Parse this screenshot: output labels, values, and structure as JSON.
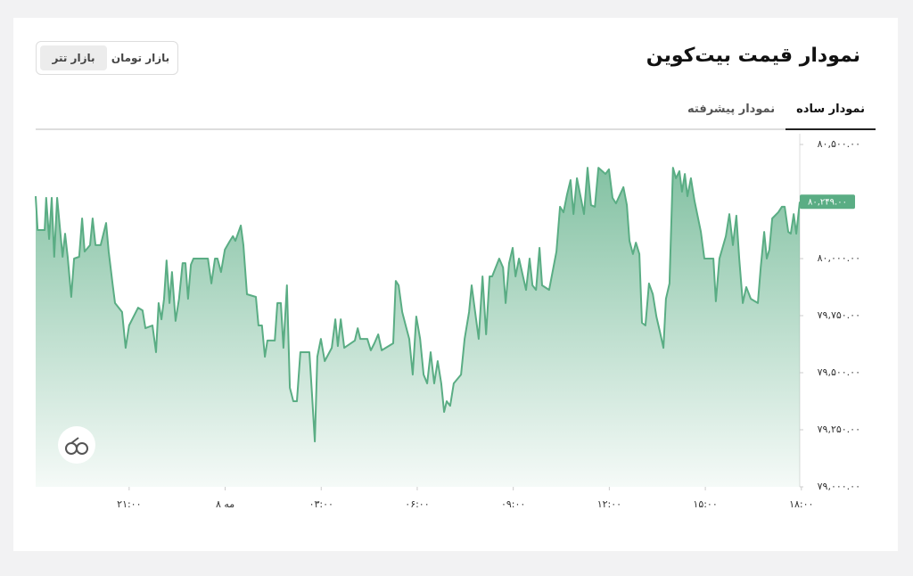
{
  "header": {
    "title": "نمودار قیمت بیت‌کوین",
    "markets": [
      "بازار تومان",
      "بازار تتر"
    ],
    "selected_market": 1
  },
  "tabs": {
    "items": [
      "نمودار ساده",
      "نمودار پیشرفته"
    ],
    "selected": 0
  },
  "chart_data": {
    "type": "area",
    "x": [
      18.08,
      18.14,
      18.36,
      18.41,
      18.5,
      18.58,
      18.66,
      18.75,
      18.92,
      19.0,
      19.08,
      19.19,
      19.28,
      19.44,
      19.53,
      19.61,
      19.78,
      19.86,
      19.95,
      20.11,
      20.28,
      20.36,
      20.48,
      20.56,
      20.78,
      20.89,
      21.0,
      21.28,
      21.42,
      21.51,
      21.73,
      21.84,
      21.92,
      22.01,
      22.09,
      22.17,
      22.26,
      22.34,
      22.45,
      22.56,
      22.67,
      22.76,
      22.84,
      22.93,
      23.01,
      23.46,
      23.57,
      23.68,
      23.76,
      23.87,
      23.99,
      24.15,
      24.24,
      24.32,
      24.49,
      24.57,
      24.68,
      24.96,
      25.04,
      25.15,
      25.24,
      25.32,
      25.55,
      25.63,
      25.74,
      25.82,
      25.93,
      26.02,
      26.13,
      26.24,
      26.35,
      26.63,
      26.71,
      26.8,
      26.88,
      26.99,
      27.11,
      27.33,
      27.44,
      27.52,
      27.61,
      27.72,
      28.05,
      28.14,
      28.22,
      28.44,
      28.55,
      28.66,
      28.78,
      28.89,
      29.25,
      29.33,
      29.42,
      29.53,
      29.64,
      29.75,
      29.86,
      29.97,
      30.09,
      30.2,
      30.31,
      30.42,
      30.53,
      30.64,
      30.75,
      30.84,
      30.92,
      31.03,
      31.14,
      31.37,
      31.48,
      31.62,
      31.7,
      31.81,
      31.92,
      32.04,
      32.15,
      32.26,
      32.34,
      32.56,
      32.68,
      32.76,
      32.87,
      32.98,
      33.07,
      33.18,
      33.4,
      33.51,
      33.6,
      33.71,
      33.82,
      33.9,
      34.12,
      34.35,
      34.46,
      34.57,
      34.68,
      34.79,
      34.88,
      34.99,
      35.1,
      35.21,
      35.32,
      35.43,
      35.55,
      35.66,
      35.88,
      35.99,
      36.1,
      36.21,
      36.44,
      36.55,
      36.63,
      36.74,
      36.83,
      36.94,
      37.02,
      37.13,
      37.24,
      37.36,
      37.47,
      37.58,
      37.69,
      37.77,
      37.88,
      37.99,
      38.08,
      38.19,
      38.27,
      38.36,
      38.44,
      38.55,
      38.66,
      38.86,
      38.97,
      39.25,
      39.33,
      39.44,
      39.64,
      39.75,
      39.86,
      39.97,
      40.06,
      40.17,
      40.28,
      40.42,
      40.64,
      40.73,
      40.84,
      40.92,
      41.0,
      41.09,
      41.28,
      41.39,
      41.48,
      41.59,
      41.67,
      41.76,
      41.84,
      41.95
    ],
    "values": [
      80273,
      80125,
      80125,
      80266,
      80086,
      80266,
      80008,
      80266,
      80008,
      80109,
      80008,
      79832,
      80000,
      80008,
      80176,
      80031,
      80059,
      80176,
      80059,
      80059,
      80156,
      80031,
      79891,
      79805,
      79766,
      79609,
      79707,
      79785,
      79773,
      79695,
      79707,
      79590,
      79805,
      79734,
      79824,
      79992,
      79805,
      79941,
      79727,
      79824,
      79980,
      79980,
      79824,
      79973,
      80000,
      80000,
      79891,
      80000,
      80000,
      79941,
      80039,
      80078,
      80098,
      80078,
      80145,
      80059,
      79844,
      79832,
      79707,
      79707,
      79570,
      79641,
      79641,
      79805,
      79805,
      79609,
      79883,
      79434,
      79375,
      79375,
      79590,
      79590,
      79414,
      79199,
      79570,
      79648,
      79551,
      79609,
      79734,
      79617,
      79734,
      79609,
      79641,
      79695,
      79648,
      79648,
      79598,
      79629,
      79668,
      79598,
      79629,
      79902,
      79883,
      79766,
      79707,
      79648,
      79492,
      79746,
      79648,
      79492,
      79453,
      79590,
      79453,
      79551,
      79453,
      79328,
      79375,
      79355,
      79453,
      79492,
      79648,
      79766,
      79883,
      79766,
      79648,
      79922,
      79668,
      79922,
      79922,
      80000,
      79961,
      79805,
      79980,
      80047,
      79922,
      80000,
      79863,
      80000,
      79883,
      79863,
      80047,
      79883,
      79863,
      80031,
      80227,
      80203,
      80281,
      80344,
      80195,
      80352,
      80273,
      80195,
      80398,
      80234,
      80227,
      80398,
      80371,
      80391,
      80266,
      80242,
      80313,
      80234,
      80078,
      80020,
      80070,
      80020,
      79719,
      79707,
      79891,
      79844,
      79746,
      79680,
      79609,
      79824,
      79891,
      80398,
      80352,
      80383,
      80293,
      80371,
      80273,
      80352,
      80254,
      80117,
      80000,
      80000,
      79813,
      80000,
      80098,
      80195,
      80059,
      80188,
      80000,
      79805,
      79875,
      79824,
      79805,
      79961,
      80117,
      80000,
      80039,
      80176,
      80203,
      80227,
      80227,
      80117,
      80109,
      80195,
      80109,
      80249
    ],
    "color": "#5aad84",
    "xlim": [
      18.08,
      41.95
    ],
    "ylim": [
      79000,
      80547
    ],
    "xticks": [
      {
        "value": 21,
        "label": "۲۱:۰۰"
      },
      {
        "value": 24,
        "label": "۸ مه"
      },
      {
        "value": 27,
        "label": "۰۳:۰۰"
      },
      {
        "value": 30,
        "label": "۰۶:۰۰"
      },
      {
        "value": 33,
        "label": "۰۹:۰۰"
      },
      {
        "value": 36,
        "label": "۱۲:۰۰"
      },
      {
        "value": 39,
        "label": "۱۵:۰۰"
      },
      {
        "value": 42,
        "label": "۱۸:۰۰"
      }
    ],
    "yticks": [
      {
        "value": 79000,
        "label": "۷۹,۰۰۰.۰۰"
      },
      {
        "value": 79250,
        "label": "۷۹,۲۵۰.۰۰"
      },
      {
        "value": 79500,
        "label": "۷۹,۵۰۰.۰۰"
      },
      {
        "value": 79750,
        "label": "۷۹,۷۵۰.۰۰"
      },
      {
        "value": 80000,
        "label": "۸۰,۰۰۰.۰۰"
      },
      {
        "value": 80500,
        "label": "۸۰,۵۰۰.۰۰"
      }
    ],
    "current_value": 80249,
    "current_value_label": "۸۰,۲۴۹.۰۰"
  }
}
